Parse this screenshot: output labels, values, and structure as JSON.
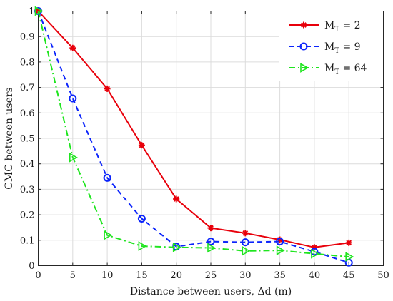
{
  "chart_data": {
    "type": "line",
    "xlabel": "Distance between users, Δd (m)",
    "ylabel": "CMC between users",
    "xlim": [
      0,
      50
    ],
    "ylim": [
      0,
      1
    ],
    "xticks": [
      0,
      5,
      10,
      15,
      20,
      25,
      30,
      35,
      40,
      45,
      50
    ],
    "yticks": [
      0,
      0.1,
      0.2,
      0.3,
      0.4,
      0.5,
      0.6,
      0.7,
      0.8,
      0.9,
      1
    ],
    "xtick_labels": [
      "0",
      "5",
      "10",
      "15",
      "20",
      "25",
      "30",
      "35",
      "40",
      "45",
      "50"
    ],
    "ytick_labels": [
      "0",
      "0.1",
      "0.2",
      "0.3",
      "0.4",
      "0.5",
      "0.6",
      "0.7",
      "0.8",
      "0.9",
      "1"
    ],
    "grid": true,
    "legend_position": "top-right",
    "x": [
      0,
      5,
      10,
      15,
      20,
      25,
      30,
      35,
      40,
      45
    ],
    "series": [
      {
        "name": "M_T = 2",
        "legend_main": "M",
        "legend_sub": "T",
        "legend_rest": " = 2",
        "color": "#e8000b",
        "dash": "solid",
        "marker": "asterisk",
        "values": [
          1.0,
          0.855,
          0.695,
          0.473,
          0.262,
          0.148,
          0.128,
          0.102,
          0.072,
          0.09
        ]
      },
      {
        "name": "M_T = 9",
        "legend_main": "M",
        "legend_sub": "T",
        "legend_rest": " = 9",
        "color": "#0b24fb",
        "dash": "dashed",
        "marker": "circle",
        "values": [
          1.0,
          0.657,
          0.345,
          0.185,
          0.075,
          0.095,
          0.092,
          0.095,
          0.055,
          0.012
        ]
      },
      {
        "name": "M_T = 64",
        "legend_main": "M",
        "legend_sub": "T",
        "legend_rest": " = 64",
        "color": "#1fe51f",
        "dash": "dashdot",
        "marker": "triangle-right",
        "values": [
          1.0,
          0.425,
          0.12,
          0.077,
          0.072,
          0.07,
          0.058,
          0.06,
          0.047,
          0.035
        ]
      }
    ]
  }
}
